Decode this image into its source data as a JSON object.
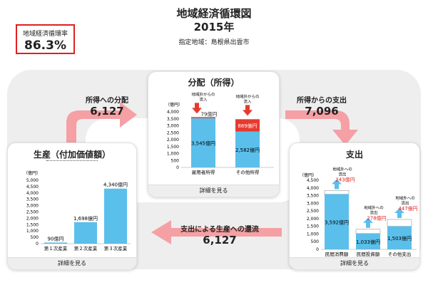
{
  "header": {
    "ratio_label": "地域経済循環率",
    "ratio_value": "86.3%",
    "title": "地域経済循環図",
    "year": "2015年",
    "region": "指定地域：島根県出雲市"
  },
  "flows": {
    "to_income": {
      "label": "所得への分配",
      "value": "6,127"
    },
    "from_income": {
      "label": "所得からの支出",
      "value": "7,096"
    },
    "back_to_production": {
      "label": "支出による生産への還流",
      "value": "6,127"
    }
  },
  "colors": {
    "bar": "#5bbfeb",
    "inflow": "#e63a2e",
    "outflow_arrow": "#5bbfeb",
    "flow_arrow": "#f4a0a4",
    "accent_red": "#e02020"
  },
  "panels": {
    "production": {
      "title": "生産（付加価値額）",
      "footer": "詳細を見る",
      "chart_data": {
        "type": "bar",
        "unit": "（億円）",
        "categories": [
          "第１次産業",
          "第２次産業",
          "第３次産業"
        ],
        "values": [
          90,
          1698,
          4340
        ],
        "value_labels": [
          "90億円",
          "1,698億円",
          "4,340億円"
        ],
        "yticks": [
          "5,000",
          "4,500",
          "4,000",
          "3,500",
          "3,000",
          "2,500",
          "2,000",
          "1,500",
          "1,000",
          "500",
          "0"
        ],
        "ylim": [
          0,
          5000
        ]
      }
    },
    "distribution": {
      "title": "分配（所得）",
      "footer": "詳細を見る",
      "chart_data": {
        "type": "bar",
        "unit": "（億円）",
        "categories": [
          "雇用者所得",
          "その他所得"
        ],
        "values": [
          3545,
          2582
        ],
        "value_labels": [
          "3,545億円",
          "2,582億円"
        ],
        "inflow_values": [
          79,
          889
        ],
        "inflow_labels": [
          "79億円",
          "889億円"
        ],
        "inflow_caption": [
          "地域外からの",
          "流入"
        ],
        "yticks": [
          "4,000",
          "3,500",
          "3,000",
          "2,500",
          "2,000",
          "1,500",
          "1,000",
          "500",
          "0"
        ],
        "ylim": [
          0,
          4000
        ]
      }
    },
    "expenditure": {
      "title": "支出",
      "footer": "詳細を見る",
      "chart_data": {
        "type": "bar",
        "unit": "（億円）",
        "categories": [
          "民間消費額",
          "民間投資額",
          "その他支出"
        ],
        "values": [
          3592,
          1033,
          1503
        ],
        "value_labels": [
          "3,592億円",
          "1,033億円",
          "1,503億円"
        ],
        "outflow_values": [
          243,
          278,
          447
        ],
        "outflow_labels": [
          "243億円",
          "278億円",
          "447億円"
        ],
        "outflow_caption": [
          "地域外への",
          "流出"
        ],
        "yticks": [
          "4,500",
          "4,000",
          "3,500",
          "3,000",
          "2,500",
          "2,000",
          "1,500",
          "1,000",
          "500",
          "0"
        ],
        "ylim": [
          0,
          4500
        ]
      }
    }
  }
}
